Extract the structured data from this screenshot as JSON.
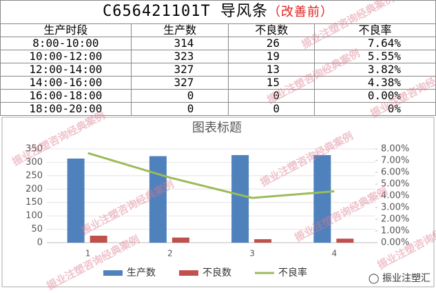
{
  "table": {
    "title": "C656421101T  导风条",
    "note": "（改善前）",
    "header": [
      "生产时段",
      "生产数",
      "不良数",
      "不良率"
    ],
    "rows": [
      [
        "8:00-10:00",
        "314",
        "26",
        "7.64%"
      ],
      [
        "10:00-12:00",
        "323",
        "19",
        "5.55%"
      ],
      [
        "12:00-14:00",
        "327",
        "13",
        "3.82%"
      ],
      [
        "14:00-16:00",
        "327",
        "15",
        "4.38%"
      ],
      [
        "16:00-18:00",
        "0",
        "0",
        "0.00%"
      ],
      [
        "18:00-20:00",
        "0",
        "0",
        "0%"
      ]
    ]
  },
  "watermark": "振业注塑咨询经典案例",
  "brand": "振业注塑汇",
  "chart_data": {
    "type": "bar",
    "title": "图表标题",
    "categories": [
      "1",
      "2",
      "3",
      "4"
    ],
    "series": [
      {
        "name": "生产数",
        "color": "#4f81bd",
        "values": [
          314,
          323,
          327,
          327
        ]
      },
      {
        "name": "不良数",
        "color": "#c0504d",
        "values": [
          26,
          19,
          13,
          15
        ]
      },
      {
        "name": "不良率",
        "color": "#9bbb59",
        "values": [
          7.64,
          5.55,
          3.82,
          4.38
        ],
        "axis": "y2",
        "type": "line"
      }
    ],
    "ylim": [
      0,
      350
    ],
    "yticks": [
      0,
      50,
      100,
      150,
      200,
      250,
      300,
      350
    ],
    "y2lim": [
      0,
      8
    ],
    "y2ticks": [
      {
        "value": 0,
        "label": "0.00%"
      },
      {
        "value": 1,
        "label": "1.00%"
      },
      {
        "value": 2,
        "label": "2.00%"
      },
      {
        "value": 3,
        "label": "3.00%"
      },
      {
        "value": 4,
        "label": "4.00%"
      },
      {
        "value": 5,
        "label": "5.00%"
      },
      {
        "value": 6,
        "label": "6.00%"
      },
      {
        "value": 7,
        "label": "7.00%"
      },
      {
        "value": 8,
        "label": "8.00%"
      }
    ],
    "legend": "bottom"
  }
}
